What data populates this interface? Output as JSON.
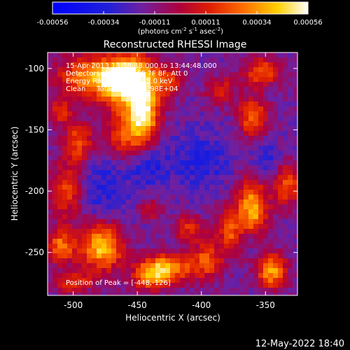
{
  "chart_data": {
    "type": "heatmap",
    "title": "Reconstructed RHESSI Image",
    "xlabel": "Heliocentric X (arcsec)",
    "ylabel": "Heliocentric Y (arcsec)",
    "xlim": [
      -520,
      -325
    ],
    "ylim": [
      -285,
      -87
    ],
    "xticks": [
      -500,
      -450,
      -400,
      -350
    ],
    "yticks": [
      -100,
      -150,
      -200,
      -250
    ],
    "colorbar": {
      "ticks": [
        "-0.00056",
        "-0.00034",
        "-0.00011",
        "0.00011",
        "0.00034",
        "0.00056"
      ],
      "vmin": -0.00056,
      "vmax": 0.00056,
      "unit_label": "(photons cm",
      "unit_sup1": "-2",
      "unit_mid1": " s",
      "unit_sup2": "-1",
      "unit_mid2": " asec",
      "unit_sup3": "-2",
      "unit_end": ")"
    },
    "annotations": [
      "15-Apr-2013 13:38:48.000 to 13:44:48.000",
      "Detectors: 3F 4F 5F 6F 7F 8F, Att 0",
      "Energy Range: 12.0 - 25.0 keV",
      "Clean     Total counts: 1.98E+04"
    ],
    "peak_label": "Position of Peak = [-448,-126]",
    "peak": [
      -448,
      -126
    ],
    "sources": [
      {
        "x": -455,
        "y": -112,
        "sx": 14,
        "sy": 16,
        "amp": 1.0
      },
      {
        "x": -445,
        "y": -140,
        "sx": 8,
        "sy": 16,
        "amp": 0.85
      },
      {
        "x": -483,
        "y": -107,
        "sx": 20,
        "sy": 12,
        "amp": 0.75
      },
      {
        "x": -462,
        "y": -155,
        "sx": 10,
        "sy": 12,
        "amp": 0.5
      },
      {
        "x": -496,
        "y": -160,
        "sx": 8,
        "sy": 12,
        "amp": 0.55
      },
      {
        "x": -505,
        "y": -200,
        "sx": 10,
        "sy": 16,
        "amp": 0.55
      },
      {
        "x": -478,
        "y": -245,
        "sx": 12,
        "sy": 14,
        "amp": 0.85
      },
      {
        "x": -510,
        "y": -245,
        "sx": 8,
        "sy": 10,
        "amp": 0.6
      },
      {
        "x": -425,
        "y": -262,
        "sx": 14,
        "sy": 8,
        "amp": 0.7
      },
      {
        "x": -440,
        "y": -270,
        "sx": 10,
        "sy": 8,
        "amp": 0.6
      },
      {
        "x": -395,
        "y": -255,
        "sx": 8,
        "sy": 12,
        "amp": 0.5
      },
      {
        "x": -378,
        "y": -230,
        "sx": 6,
        "sy": 14,
        "amp": 0.55
      },
      {
        "x": -360,
        "y": -215,
        "sx": 8,
        "sy": 18,
        "amp": 0.8
      },
      {
        "x": -345,
        "y": -265,
        "sx": 8,
        "sy": 10,
        "amp": 0.75
      },
      {
        "x": -333,
        "y": -195,
        "sx": 8,
        "sy": 12,
        "amp": 0.55
      },
      {
        "x": -360,
        "y": -140,
        "sx": 8,
        "sy": 12,
        "amp": 0.6
      },
      {
        "x": -353,
        "y": -103,
        "sx": 10,
        "sy": 8,
        "amp": 0.55
      },
      {
        "x": -385,
        "y": -118,
        "sx": 8,
        "sy": 8,
        "amp": 0.4
      },
      {
        "x": -425,
        "y": -110,
        "sx": 8,
        "sy": 8,
        "amp": 0.4
      },
      {
        "x": -410,
        "y": -230,
        "sx": 8,
        "sy": 8,
        "amp": 0.4
      },
      {
        "x": -440,
        "y": -215,
        "sx": 6,
        "sy": 6,
        "amp": 0.35
      },
      {
        "x": -510,
        "y": -135,
        "sx": 6,
        "sy": 8,
        "amp": 0.4
      },
      {
        "x": -500,
        "y": -275,
        "sx": 10,
        "sy": 6,
        "amp": 0.45
      }
    ],
    "dark_regions": [
      {
        "x": -480,
        "y": -200,
        "sx": 18,
        "sy": 22
      },
      {
        "x": -400,
        "y": -175,
        "sx": 18,
        "sy": 18
      },
      {
        "x": -440,
        "y": -180,
        "sx": 10,
        "sy": 12
      },
      {
        "x": -350,
        "y": -175,
        "sx": 8,
        "sy": 12
      },
      {
        "x": -360,
        "y": -240,
        "sx": 6,
        "sy": 8
      }
    ]
  },
  "footer": {
    "timestamp": "12-May-2022 18:40"
  }
}
